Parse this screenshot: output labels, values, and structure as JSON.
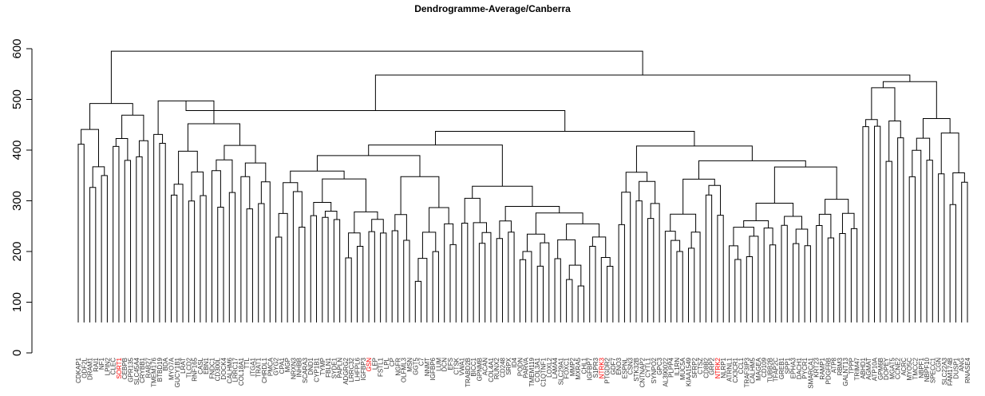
{
  "chart_data": {
    "type": "dendrogram",
    "title": "Dendrogramme-Average/Canberra",
    "ylim": [
      0,
      600
    ],
    "yticks": [
      0,
      100,
      200,
      300,
      400,
      500,
      600
    ],
    "grid": false,
    "highlight_color": "#ff0000",
    "line_color": "#000000",
    "leaves": [
      {
        "label": "CDKAP1"
      },
      {
        "label": "ODF2L"
      },
      {
        "label": "DRAM1"
      },
      {
        "label": "RAI1"
      },
      {
        "label": "NF1"
      },
      {
        "label": "LPIN2"
      },
      {
        "label": "CLEC"
      },
      {
        "label": "SORT1",
        "highlight": true
      },
      {
        "label": "CEBPB"
      },
      {
        "label": "GPR135"
      },
      {
        "label": "SLC45A4"
      },
      {
        "label": "CRYBB1"
      },
      {
        "label": "RAB27"
      },
      {
        "label": "TMEM176"
      },
      {
        "label": "BTBD19"
      },
      {
        "label": "BDA"
      },
      {
        "label": "MYO7A"
      },
      {
        "label": "GUCY1B1"
      },
      {
        "label": "LRAT"
      },
      {
        "label": "TLCD2"
      },
      {
        "label": "RNF165"
      },
      {
        "label": "CASL"
      },
      {
        "label": "EBN1"
      },
      {
        "label": "FNDC1"
      },
      {
        "label": "CD300L"
      },
      {
        "label": "DOCK4"
      },
      {
        "label": "CALHM6"
      },
      {
        "label": "LRRC17"
      },
      {
        "label": "COL18A1"
      },
      {
        "label": "TTL"
      },
      {
        "label": "ITGA1"
      },
      {
        "label": "TRAT1"
      },
      {
        "label": "CHRDL1"
      },
      {
        "label": "PMCA"
      },
      {
        "label": "GYG2"
      },
      {
        "label": "CPA1"
      },
      {
        "label": "MGP"
      },
      {
        "label": "NRXN3"
      },
      {
        "label": "INHBB"
      },
      {
        "label": "SCARA3"
      },
      {
        "label": "DND1"
      },
      {
        "label": "CYP1B1"
      },
      {
        "label": "TYMP"
      },
      {
        "label": "FBLN1"
      },
      {
        "label": "SYDE1"
      },
      {
        "label": "PAPLN"
      },
      {
        "label": "ADGRG2"
      },
      {
        "label": "LRRC32"
      },
      {
        "label": "LHFPL6"
      },
      {
        "label": "IGFBP3"
      },
      {
        "label": "GSN",
        "highlight": true
      },
      {
        "label": "LEP"
      },
      {
        "label": "FSTL1"
      },
      {
        "label": "LPL"
      },
      {
        "label": "CP"
      },
      {
        "label": "NGFR"
      },
      {
        "label": "OLFML3"
      },
      {
        "label": "MSN"
      },
      {
        "label": "GGT5"
      },
      {
        "label": "C7"
      },
      {
        "label": "NNMT"
      },
      {
        "label": "IGFBP6"
      },
      {
        "label": "LUM"
      },
      {
        "label": "DCN"
      },
      {
        "label": "EFS"
      },
      {
        "label": "CTSK"
      },
      {
        "label": "VWA1"
      },
      {
        "label": "TRABD2B"
      },
      {
        "label": "BICC1"
      },
      {
        "label": "GPNMB"
      },
      {
        "label": "ACAN"
      },
      {
        "label": "COL4A1"
      },
      {
        "label": "RUNX2"
      },
      {
        "label": "CD248"
      },
      {
        "label": "SRPX"
      },
      {
        "label": "ID4"
      },
      {
        "label": "PODN"
      },
      {
        "label": "PARVA"
      },
      {
        "label": "TMEM119"
      },
      {
        "label": "COL3A1"
      },
      {
        "label": "C1QTNF1"
      },
      {
        "label": "LOXL2"
      },
      {
        "label": "LAMA4"
      },
      {
        "label": "SLC29A1"
      },
      {
        "label": "FOXC1"
      },
      {
        "label": "MMP2"
      },
      {
        "label": "MXRA5"
      },
      {
        "label": "CHL1"
      },
      {
        "label": "IGFBP7"
      },
      {
        "label": "S1PR3"
      },
      {
        "label": "NTRK3",
        "highlight": true
      },
      {
        "label": "PTGDR2"
      },
      {
        "label": "GDF7"
      },
      {
        "label": "ENO3"
      },
      {
        "label": "ESPNL"
      },
      {
        "label": "CSN3"
      },
      {
        "label": "STK32B"
      },
      {
        "label": "CNTNAP2"
      },
      {
        "label": "CYTL1"
      },
      {
        "label": "SYNPO2"
      },
      {
        "label": "GPC3"
      },
      {
        "label": "AL390022"
      },
      {
        "label": "PLPP4"
      },
      {
        "label": "IL1RN"
      },
      {
        "label": "MUC5A"
      },
      {
        "label": "KIAA1549"
      },
      {
        "label": "SFRP2"
      },
      {
        "label": "CTSZ"
      },
      {
        "label": "CD8B2"
      },
      {
        "label": "GRP2"
      },
      {
        "label": "NTRK2",
        "highlight": true
      },
      {
        "label": "NLRP1"
      },
      {
        "label": "ATRNL1"
      },
      {
        "label": "CX3CR1"
      },
      {
        "label": "CCL1"
      },
      {
        "label": "TRAF3IP3"
      },
      {
        "label": "CALHM5"
      },
      {
        "label": "MAGEA"
      },
      {
        "label": "CD109"
      },
      {
        "label": "TUBB2B"
      },
      {
        "label": "TFAP2C"
      },
      {
        "label": "GREB1"
      },
      {
        "label": "SPP1"
      },
      {
        "label": "EPHA3"
      },
      {
        "label": "DACH1"
      },
      {
        "label": "PYCR1"
      },
      {
        "label": "SMARCA1"
      },
      {
        "label": "KRT23"
      },
      {
        "label": "RAMP1"
      },
      {
        "label": "PDGFRB"
      },
      {
        "label": "ATP8"
      },
      {
        "label": "RBM3"
      },
      {
        "label": "GALNT13"
      },
      {
        "label": "TPPP"
      },
      {
        "label": "TRIM47"
      },
      {
        "label": "ABHD1"
      },
      {
        "label": "AGMAT"
      },
      {
        "label": "ATP10A"
      },
      {
        "label": "GPM6B"
      },
      {
        "label": "DOPEY"
      },
      {
        "label": "MGAT5"
      },
      {
        "label": "CCNE2"
      },
      {
        "label": "ACRC"
      },
      {
        "label": "MYO5C"
      },
      {
        "label": "TMCC2"
      },
      {
        "label": "NBPF1"
      },
      {
        "label": "NBPF10"
      },
      {
        "label": "SPECC1"
      },
      {
        "label": "CGN"
      },
      {
        "label": "SLC22A3"
      },
      {
        "label": "FAM174B"
      },
      {
        "label": "DUSP1"
      },
      {
        "label": "ANG"
      },
      {
        "label": "RNASE4"
      }
    ],
    "root_height": 595
  }
}
